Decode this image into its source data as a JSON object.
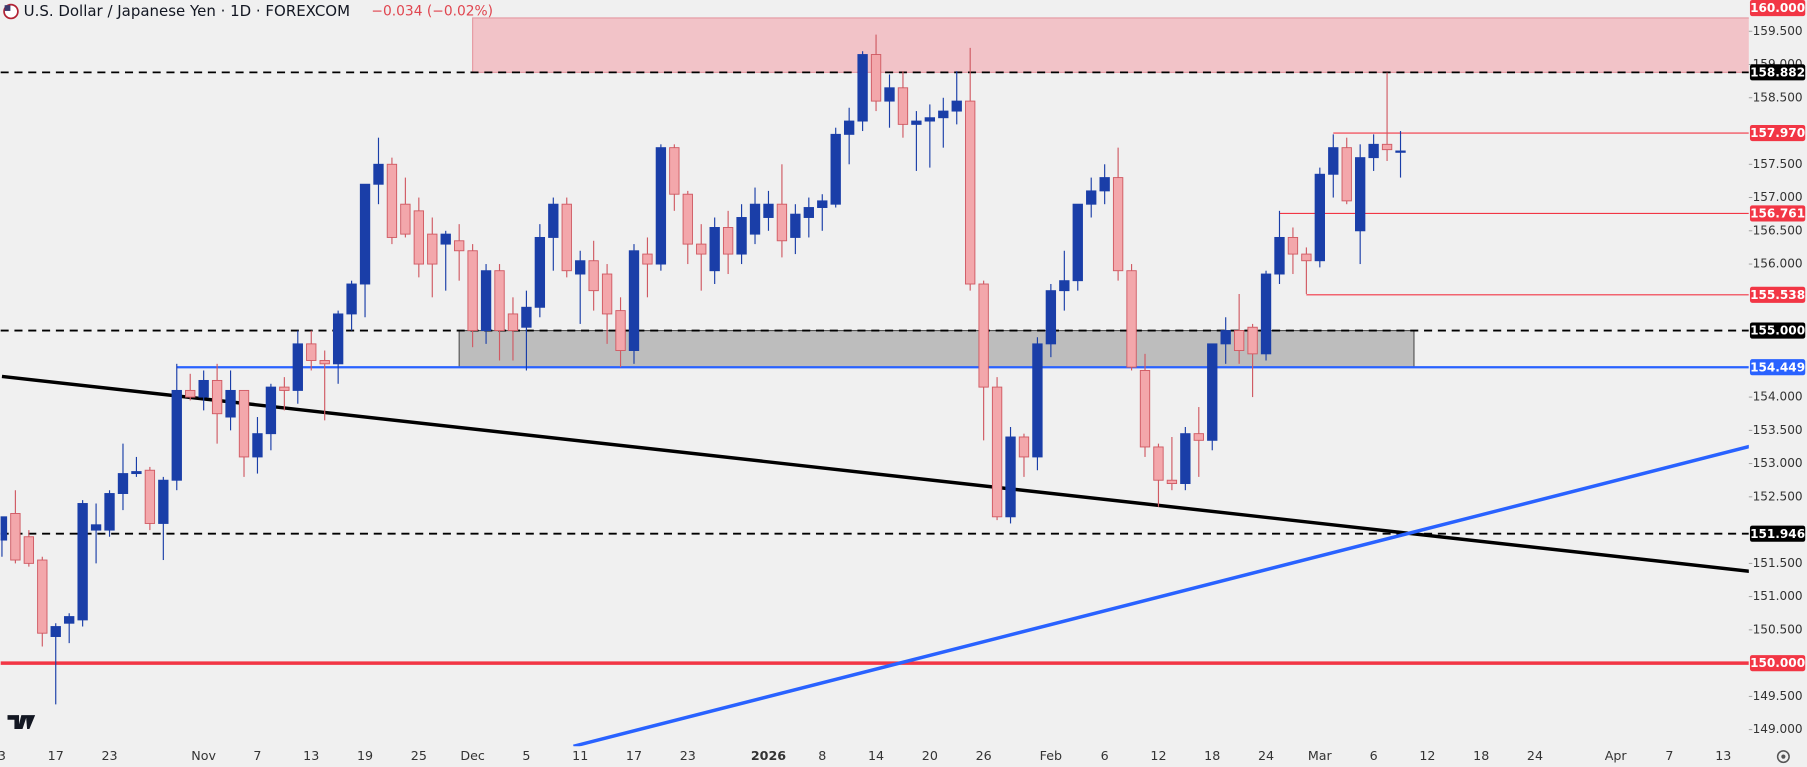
{
  "chart_data": {
    "type": "candlestick",
    "title": "U.S. Dollar / Japanese Yen · 1D · FOREXCOM",
    "change": "−0.034 (−0.02%)",
    "up_color": "#1a3ea8",
    "down_color": "#f3a7ab",
    "down_line_color": "#d05a63",
    "categories": [
      "3",
      null,
      null,
      null,
      "17",
      null,
      null,
      null,
      "23",
      null,
      null,
      null,
      null,
      null,
      null,
      "Nov",
      null,
      null,
      null,
      "7",
      null,
      null,
      null,
      "13",
      null,
      null,
      null,
      "19",
      null,
      null,
      null,
      "25",
      null,
      null,
      null,
      "Dec",
      null,
      null,
      null,
      "5",
      null,
      null,
      null,
      "11",
      null,
      null,
      null,
      "17",
      null,
      null,
      null,
      "23",
      null,
      null,
      null,
      null,
      null,
      "2026",
      null,
      null,
      null,
      "8",
      null,
      null,
      null,
      "14",
      null,
      null,
      null,
      "20",
      null,
      null,
      null,
      "26",
      null,
      null,
      null,
      null,
      "Feb",
      null,
      null,
      null,
      "6",
      null,
      null,
      null,
      "12",
      null,
      null,
      null,
      "18",
      null,
      null,
      null,
      "24",
      null,
      null,
      null,
      "Mar",
      null,
      null,
      null,
      "6",
      null,
      null,
      null,
      "12",
      null,
      null,
      null,
      "18",
      null,
      null,
      null,
      "24",
      null,
      null,
      null,
      null,
      null,
      "Apr",
      null,
      null,
      null,
      "7",
      null,
      null,
      null,
      "13",
      null
    ],
    "open": [
      151.85,
      152.25,
      151.9,
      151.55,
      150.4,
      150.6,
      150.65,
      152.0,
      152.0,
      152.55,
      152.85,
      152.9,
      152.1,
      152.75,
      154.1,
      154.0,
      154.25,
      153.7,
      154.1,
      153.1,
      153.45,
      154.15,
      154.1,
      154.8,
      154.55,
      154.5,
      155.25,
      155.7,
      157.2,
      157.5,
      156.9,
      156.8,
      156.45,
      156.3,
      156.35,
      156.2,
      155.0,
      155.9,
      155.25,
      155.05,
      155.35,
      156.4,
      156.9,
      155.85,
      156.05,
      155.85,
      155.3,
      154.7,
      156.15,
      156.0,
      157.75,
      157.05,
      156.3,
      155.9,
      156.55,
      156.15,
      156.45,
      156.7,
      156.9,
      156.4,
      156.7,
      156.85,
      156.9,
      157.95,
      158.15,
      159.15,
      158.45,
      158.65,
      158.1,
      158.15,
      158.2,
      158.3,
      158.45,
      155.7,
      154.15,
      152.2,
      153.4,
      153.1,
      154.8,
      155.6,
      155.75,
      156.9,
      157.1,
      157.3,
      155.9,
      154.4,
      153.25,
      152.75,
      152.7,
      153.45,
      153.35,
      154.8,
      155.0,
      155.05,
      154.65,
      155.85,
      156.4,
      156.15,
      156.05,
      157.35,
      157.75,
      156.5,
      157.6,
      157.8,
      157.68,
      null,
      null,
      null,
      null,
      null,
      null,
      null,
      null,
      null,
      null,
      null,
      null,
      null,
      null,
      null,
      null,
      null,
      null,
      null,
      null,
      null,
      null,
      null,
      null,
      null
    ],
    "high": [
      152.2,
      152.6,
      152.0,
      151.6,
      150.6,
      150.75,
      152.45,
      152.4,
      152.6,
      153.3,
      153.1,
      152.95,
      152.8,
      154.5,
      154.35,
      154.4,
      154.5,
      154.4,
      154.1,
      153.7,
      154.2,
      154.3,
      155.0,
      155.0,
      154.7,
      155.3,
      155.75,
      157.2,
      157.9,
      157.6,
      157.3,
      157.0,
      156.7,
      156.5,
      156.6,
      156.3,
      156.0,
      156.0,
      155.5,
      155.6,
      156.6,
      157.0,
      157.0,
      156.2,
      156.35,
      156.0,
      155.5,
      156.3,
      156.4,
      157.8,
      157.8,
      157.1,
      156.6,
      156.7,
      156.8,
      156.9,
      157.15,
      157.1,
      157.5,
      156.9,
      157.0,
      157.05,
      158.05,
      158.35,
      159.2,
      159.45,
      158.85,
      158.9,
      158.3,
      158.4,
      158.5,
      158.9,
      159.25,
      155.75,
      154.3,
      153.55,
      153.45,
      154.9,
      155.7,
      156.2,
      156.9,
      157.3,
      157.5,
      157.75,
      156.0,
      154.65,
      153.3,
      153.4,
      153.55,
      153.85,
      154.8,
      155.2,
      155.55,
      155.1,
      155.9,
      156.8,
      156.55,
      156.25,
      157.45,
      157.95,
      157.9,
      157.8,
      157.95,
      158.88,
      158.0,
      null,
      null,
      null,
      null,
      null,
      null,
      null,
      null,
      null,
      null,
      null,
      null,
      null,
      null,
      null,
      null,
      null,
      null,
      null,
      null,
      null,
      null,
      null,
      null,
      null
    ],
    "low": [
      151.6,
      151.5,
      151.45,
      150.25,
      149.38,
      150.3,
      150.55,
      151.5,
      151.9,
      152.3,
      152.8,
      152.0,
      151.55,
      152.6,
      153.95,
      153.8,
      153.3,
      153.5,
      152.8,
      152.85,
      153.2,
      153.8,
      153.9,
      154.4,
      153.65,
      154.2,
      155.0,
      155.2,
      156.9,
      156.3,
      156.4,
      155.8,
      155.5,
      155.6,
      155.75,
      154.75,
      154.8,
      154.55,
      154.55,
      154.4,
      155.2,
      155.9,
      155.8,
      155.1,
      155.3,
      154.8,
      154.45,
      154.5,
      155.5,
      155.9,
      156.8,
      156.0,
      155.6,
      155.7,
      155.85,
      156.0,
      156.3,
      156.5,
      156.1,
      156.15,
      156.4,
      156.5,
      156.85,
      157.5,
      158.0,
      158.3,
      158.05,
      157.9,
      157.4,
      157.45,
      157.75,
      158.1,
      155.6,
      153.35,
      152.15,
      152.1,
      152.8,
      152.9,
      154.6,
      155.3,
      155.6,
      156.7,
      156.9,
      155.75,
      154.4,
      153.1,
      152.35,
      152.6,
      152.6,
      152.8,
      153.2,
      154.5,
      154.5,
      154.0,
      154.55,
      155.7,
      155.85,
      155.55,
      155.95,
      157.0,
      156.9,
      156.0,
      157.4,
      157.55,
      157.3,
      null,
      null,
      null,
      null,
      null,
      null,
      null,
      null,
      null,
      null,
      null,
      null,
      null,
      null,
      null,
      null,
      null,
      null,
      null,
      null,
      null,
      null,
      null,
      null,
      null
    ],
    "close": [
      152.2,
      151.55,
      151.5,
      150.45,
      150.55,
      150.7,
      152.4,
      152.08,
      152.55,
      152.85,
      152.88,
      152.1,
      152.75,
      154.1,
      154.0,
      154.25,
      153.75,
      154.1,
      153.1,
      153.45,
      154.15,
      154.1,
      154.8,
      154.55,
      154.5,
      155.25,
      155.7,
      157.2,
      157.5,
      156.4,
      156.45,
      156.0,
      156.0,
      156.45,
      156.2,
      155.0,
      155.9,
      155.0,
      155.0,
      155.35,
      156.4,
      156.9,
      155.9,
      156.05,
      155.6,
      155.25,
      154.7,
      156.2,
      156.0,
      157.75,
      157.05,
      156.3,
      156.15,
      156.55,
      156.15,
      156.7,
      156.9,
      156.9,
      156.35,
      156.75,
      156.85,
      156.95,
      157.95,
      158.15,
      159.15,
      158.45,
      158.65,
      158.1,
      158.15,
      158.2,
      158.3,
      158.45,
      155.7,
      154.15,
      152.2,
      153.4,
      153.1,
      154.8,
      155.6,
      155.75,
      156.9,
      157.1,
      157.3,
      155.9,
      154.45,
      153.25,
      152.75,
      152.7,
      153.45,
      153.35,
      154.8,
      155.0,
      154.7,
      154.65,
      155.85,
      156.4,
      156.15,
      156.05,
      157.35,
      157.75,
      156.95,
      157.6,
      157.8,
      157.72,
      157.7,
      null,
      null,
      null,
      null,
      null,
      null,
      null,
      null,
      null,
      null,
      null,
      null,
      null,
      null,
      null,
      null,
      null,
      null,
      null,
      null,
      null,
      null,
      null,
      null,
      null
    ],
    "ylim": [
      148.75,
      159.97
    ],
    "yticks": [
      {
        "value": 149,
        "label": "149.000"
      },
      {
        "value": 149.5,
        "label": "149.500"
      },
      {
        "value": 150.5,
        "label": "150.500"
      },
      {
        "value": 151,
        "label": "151.000"
      },
      {
        "value": 151.5,
        "label": "151.500"
      },
      {
        "value": 152.5,
        "label": "152.500"
      },
      {
        "value": 153,
        "label": "153.000"
      },
      {
        "value": 153.5,
        "label": "153.500"
      },
      {
        "value": 154,
        "label": "154.000"
      },
      {
        "value": 156,
        "label": "156.000"
      },
      {
        "value": 156.5,
        "label": "156.500"
      },
      {
        "value": 157,
        "label": "157.000"
      },
      {
        "value": 157.5,
        "label": "157.500"
      },
      {
        "value": 158.5,
        "label": "158.500"
      },
      {
        "value": 159,
        "label": "159.000"
      },
      {
        "value": 159.5,
        "label": "159.500"
      }
    ],
    "grid": false,
    "zones": [
      {
        "bottom": 158.882,
        "top": 159.7,
        "start": 35,
        "color": "#f2c3c8",
        "border": "#e59aa3"
      },
      {
        "bottom": 154.449,
        "top": 155.0,
        "start": 34,
        "end": 105,
        "color": "#bdbdbd",
        "border": "#555555"
      }
    ],
    "trendlines": [
      {
        "color": "#000000",
        "x": [
          0,
          130
        ],
        "y": [
          154.31,
          151.38
        ]
      },
      {
        "color": "#2962ff",
        "x": [
          42.5,
          130
        ],
        "y": [
          148.75,
          153.26
        ]
      }
    ],
    "levels": [
      {
        "value": 160,
        "label": "160.000",
        "color": "#f23645",
        "style": "none"
      },
      {
        "value": 158.882,
        "color": "#000000",
        "style": "dashed"
      },
      {
        "value": 157.97,
        "label": "157.970",
        "color": "#f23645",
        "style": "thin",
        "start": 99
      },
      {
        "value": 156.761,
        "label": "156.761",
        "color": "#f23645",
        "style": "thin",
        "start": 95
      },
      {
        "value": 155.538,
        "label": "155.538",
        "color": "#f23645",
        "style": "thin",
        "start": 97
      },
      {
        "value": 155,
        "label": "155.000",
        "color": "#000000",
        "style": "dashed"
      },
      {
        "value": 154.449,
        "color": "#2962ff",
        "style": "solid",
        "start": 13
      },
      {
        "value": 151.946,
        "color": "#000000",
        "style": "dashed"
      },
      {
        "value": 150,
        "label": "150.000",
        "color": "#f23645",
        "style": "thick"
      }
    ]
  }
}
